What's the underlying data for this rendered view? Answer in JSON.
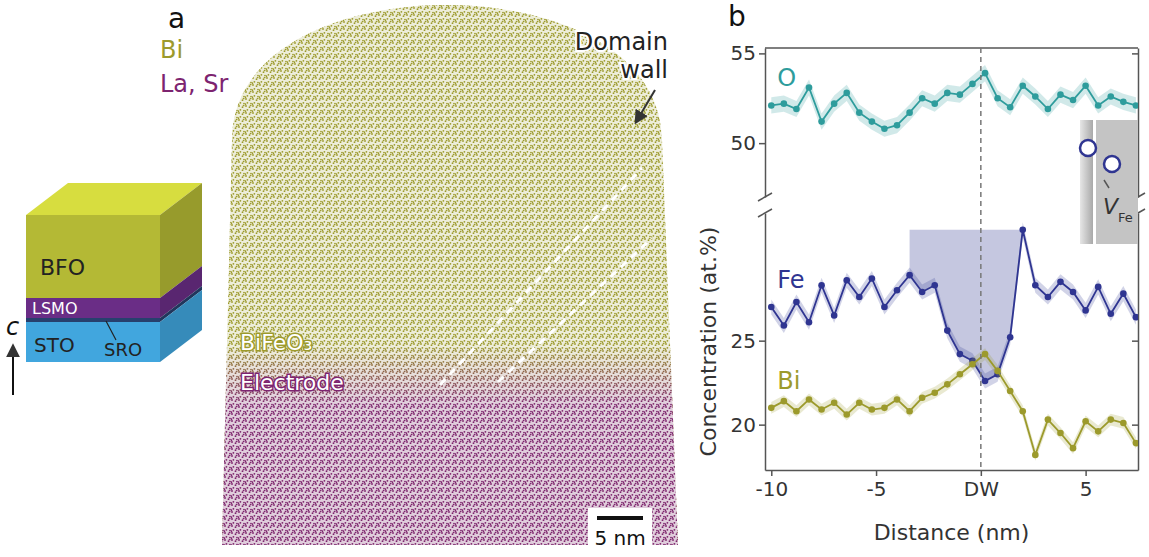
{
  "chart_data": [
    {
      "type": "line",
      "x": [
        -10,
        -9.4,
        -8.8,
        -8.2,
        -7.6,
        -7,
        -6.4,
        -5.8,
        -5.2,
        -4.6,
        -4,
        -3.4,
        -2.8,
        -2.2,
        -1.6,
        -1,
        -0.4,
        0.2,
        0.8,
        1.4,
        2,
        2.6,
        3.2,
        3.8,
        4.4,
        5,
        5.6,
        6.2,
        6.8,
        7.4
      ],
      "xlim": [
        -10.3,
        7.5
      ],
      "ylim": [
        47,
        55.3
      ],
      "yticks": [
        50,
        55
      ],
      "tick_labels": "y",
      "series": [
        {
          "name": "O",
          "color": "#2e9c9c",
          "marker": "circle",
          "line_style": "solid",
          "values": [
            52.1,
            52.2,
            51.9,
            53.1,
            51.2,
            52.2,
            52.8,
            51.7,
            51.2,
            50.8,
            51.0,
            51.7,
            52.5,
            52.2,
            52.8,
            52.7,
            53.3,
            53.9,
            52.5,
            52.0,
            53.2,
            52.6,
            51.9,
            52.7,
            52.4,
            53.2,
            52.1,
            52.6,
            52.3,
            52.1
          ],
          "errors": [
            0.45,
            0.45,
            0.45,
            0.45,
            0.45,
            0.45,
            0.45,
            0.45,
            0.45,
            0.45,
            0.45,
            0.45,
            0.45,
            0.45,
            0.45,
            0.45,
            0.45,
            0.45,
            0.45,
            0.45,
            0.45,
            0.45,
            0.45,
            0.45,
            0.45,
            0.45,
            0.45,
            0.45,
            0.45,
            0.45
          ]
        }
      ]
    },
    {
      "type": "line",
      "x": [
        -10,
        -9.4,
        -8.8,
        -8.2,
        -7.6,
        -7,
        -6.4,
        -5.8,
        -5.2,
        -4.6,
        -4,
        -3.4,
        -2.8,
        -2.2,
        -1.6,
        -1,
        -0.4,
        0.2,
        0.8,
        1.4,
        2,
        2.6,
        3.2,
        3.8,
        4.4,
        5,
        5.6,
        6.2,
        6.8,
        7.4
      ],
      "xlim": [
        -10.3,
        7.5
      ],
      "xticks": [
        -10,
        -5,
        {
          "value": 0,
          "label": "DW"
        },
        5
      ],
      "ylim": [
        17.3,
        32.6
      ],
      "yticks": [
        20,
        25
      ],
      "x_label": "Distance (nm)",
      "y_label": "Concentration (at.%)",
      "series": [
        {
          "name": "Fe",
          "color": "#2f3591",
          "marker": "circle",
          "line_style": "solid",
          "values": [
            27.0,
            25.9,
            27.3,
            26.1,
            28.3,
            26.5,
            28.6,
            27.6,
            28.7,
            27.0,
            28.0,
            28.9,
            27.9,
            28.3,
            25.6,
            24.2,
            23.8,
            22.6,
            23.0,
            25.2,
            31.6,
            28.3,
            27.6,
            28.5,
            27.9,
            26.8,
            28.2,
            26.6,
            27.8,
            26.4
          ],
          "errors": [
            0.45,
            0.45,
            0.45,
            0.45,
            0.45,
            0.45,
            0.45,
            0.45,
            0.45,
            0.45,
            0.45,
            0.45,
            0.45,
            0.45,
            0.45,
            0.45,
            0.45,
            0.45,
            0.45,
            0.45,
            0.45,
            0.45,
            0.45,
            0.45,
            0.45,
            0.45,
            0.45,
            0.45,
            0.45,
            0.45
          ]
        },
        {
          "name": "Bi",
          "color": "#9c9a2c",
          "marker": "circle",
          "line_style": "solid",
          "values": [
            21.0,
            21.4,
            20.8,
            21.5,
            20.9,
            21.3,
            20.6,
            21.3,
            20.9,
            21.0,
            21.5,
            20.8,
            21.6,
            21.9,
            22.4,
            23.0,
            23.6,
            24.2,
            23.2,
            22.0,
            20.8,
            18.2,
            20.3,
            19.5,
            18.6,
            20.2,
            19.6,
            20.3,
            20.1,
            18.9
          ],
          "errors": [
            0.35,
            0.35,
            0.35,
            0.35,
            0.35,
            0.35,
            0.35,
            0.35,
            0.35,
            0.35,
            0.35,
            0.35,
            0.35,
            0.35,
            0.35,
            0.35,
            0.35,
            0.35,
            0.35,
            0.35,
            0.35,
            0.35,
            0.35,
            0.35,
            0.35,
            0.35,
            0.35,
            0.35,
            0.35,
            0.35
          ]
        }
      ]
    }
  ],
  "panel_a": {
    "letter": "a",
    "species": [
      {
        "label": "Bi",
        "color": "#9c9a2c"
      },
      {
        "label": "La, Sr",
        "color": "#7d2470"
      }
    ],
    "domain_wall": "Domain wall",
    "film": "BiFeO₃",
    "electrode": "Electrode",
    "scale_bar": "5 nm",
    "stack": {
      "layers": [
        {
          "label": "BFO",
          "color": "#b4b935"
        },
        {
          "label": "LSMO",
          "color": "#6a2d86"
        },
        {
          "label": "SRO",
          "color": "#27406e"
        },
        {
          "label": "STO",
          "color": "#41a6de"
        }
      ],
      "axis": "c"
    }
  },
  "panel_b": {
    "letter": "b",
    "inset": {
      "label": "V",
      "subscript": "Fe"
    }
  }
}
